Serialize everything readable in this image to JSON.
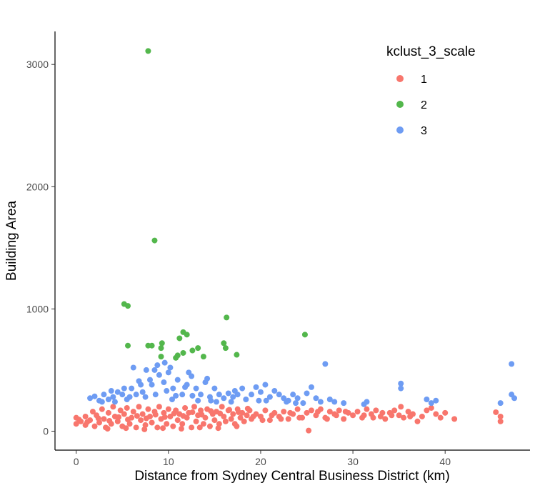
{
  "chart_data": {
    "type": "scatter",
    "title": "",
    "xlabel": "Distance from Sydney Central Business District (km)",
    "ylabel": "Building Area",
    "xlim": [
      -2.3,
      49.2
    ],
    "ylim": [
      -155,
      3270
    ],
    "x_ticks": [
      0,
      10,
      20,
      30,
      40
    ],
    "x_tick_labels": [
      "0",
      "10",
      "20",
      "30",
      "40"
    ],
    "y_ticks": [
      0,
      1000,
      2000,
      3000
    ],
    "y_tick_labels": [
      "0",
      "1000",
      "2000",
      "3000"
    ],
    "grid": false,
    "legend": {
      "title": "kclust_3_scale",
      "position": "top-right"
    },
    "series": [
      {
        "name": "1",
        "color": "#F8766D",
        "points": [
          [
            0,
            60
          ],
          [
            0,
            110
          ],
          [
            0.5,
            80
          ],
          [
            1,
            50
          ],
          [
            1,
            120
          ],
          [
            1.5,
            90
          ],
          [
            1.8,
            160
          ],
          [
            2,
            40
          ],
          [
            2.2,
            130
          ],
          [
            2.5,
            70
          ],
          [
            2.8,
            180
          ],
          [
            3,
            100
          ],
          [
            3.2,
            30
          ],
          [
            3.5,
            150
          ],
          [
            3.8,
            60
          ],
          [
            4,
            200
          ],
          [
            4.2,
            120
          ],
          [
            4.5,
            80
          ],
          [
            4.8,
            170
          ],
          [
            5,
            40
          ],
          [
            5.2,
            140
          ],
          [
            5.5,
            190
          ],
          [
            5.8,
            60
          ],
          [
            6,
            110
          ],
          [
            6.2,
            160
          ],
          [
            6.5,
            30
          ],
          [
            6.8,
            200
          ],
          [
            7,
            90
          ],
          [
            7.2,
            140
          ],
          [
            7.5,
            50
          ],
          [
            7.8,
            180
          ],
          [
            8,
            120
          ],
          [
            8.2,
            70
          ],
          [
            8.5,
            160
          ],
          [
            8.8,
            30
          ],
          [
            9,
            200
          ],
          [
            9.2,
            100
          ],
          [
            9.5,
            150
          ],
          [
            9.8,
            60
          ],
          [
            10,
            180
          ],
          [
            10.2,
            120
          ],
          [
            10.5,
            40
          ],
          [
            10.8,
            170
          ],
          [
            11,
            90
          ],
          [
            11.2,
            140
          ],
          [
            11.5,
            60
          ],
          [
            11.8,
            190
          ],
          [
            12,
            110
          ],
          [
            12.2,
            150
          ],
          [
            12.5,
            30
          ],
          [
            12.8,
            200
          ],
          [
            13,
            80
          ],
          [
            13.2,
            130
          ],
          [
            13.5,
            170
          ],
          [
            13.8,
            60
          ],
          [
            14,
            110
          ],
          [
            14.2,
            180
          ],
          [
            14.5,
            40
          ],
          [
            14.8,
            140
          ],
          [
            15,
            90
          ],
          [
            15.2,
            160
          ],
          [
            15.5,
            60
          ],
          [
            15.8,
            200
          ],
          [
            16,
            120
          ],
          [
            16.2,
            80
          ],
          [
            16.5,
            170
          ],
          [
            16.8,
            100
          ],
          [
            17,
            140
          ],
          [
            17.2,
            60
          ],
          [
            17.5,
            180
          ],
          [
            17.8,
            110
          ],
          [
            18,
            150
          ],
          [
            18.2,
            80
          ],
          [
            18.5,
            130
          ],
          [
            18.8,
            170
          ],
          [
            19,
            100
          ],
          [
            19.5,
            140
          ],
          [
            20,
            120
          ],
          [
            20.5,
            170
          ],
          [
            21,
            90
          ],
          [
            21.5,
            150
          ],
          [
            22,
            120
          ],
          [
            22.5,
            160
          ],
          [
            23,
            100
          ],
          [
            23.5,
            140
          ],
          [
            24,
            180
          ],
          [
            24.5,
            110
          ],
          [
            25,
            150
          ],
          [
            25.2,
            5
          ],
          [
            25.5,
            170
          ],
          [
            26,
            130
          ],
          [
            26.5,
            180
          ],
          [
            27,
            110
          ],
          [
            27.5,
            160
          ],
          [
            28,
            140
          ],
          [
            28.5,
            170
          ],
          [
            29,
            100
          ],
          [
            29.5,
            150
          ],
          [
            30,
            130
          ],
          [
            30.5,
            160
          ],
          [
            31,
            110
          ],
          [
            31.5,
            180
          ],
          [
            32,
            140
          ],
          [
            32.5,
            170
          ],
          [
            33,
            120
          ],
          [
            33.5,
            100
          ],
          [
            34,
            150
          ],
          [
            34.5,
            170
          ],
          [
            35,
            130
          ],
          [
            35.2,
            200
          ],
          [
            35.5,
            110
          ],
          [
            36,
            160
          ],
          [
            36.5,
            140
          ],
          [
            37,
            80
          ],
          [
            37.5,
            120
          ],
          [
            38,
            170
          ],
          [
            38.5,
            190
          ],
          [
            39,
            140
          ],
          [
            40,
            150
          ],
          [
            41,
            100
          ],
          [
            45.5,
            155
          ],
          [
            46,
            120
          ],
          [
            46,
            80
          ],
          [
            0.3,
            95
          ],
          [
            1.2,
            75
          ],
          [
            2.4,
            105
          ],
          [
            3.6,
            85
          ],
          [
            4.6,
            115
          ],
          [
            5.6,
            95
          ],
          [
            6.6,
            125
          ],
          [
            7.6,
            105
          ],
          [
            8.6,
            135
          ],
          [
            9.6,
            115
          ],
          [
            10.6,
            145
          ],
          [
            11.6,
            125
          ],
          [
            12.6,
            155
          ],
          [
            13.6,
            135
          ],
          [
            14.6,
            165
          ],
          [
            15.6,
            145
          ],
          [
            16.6,
            175
          ],
          [
            17.6,
            155
          ],
          [
            18.6,
            185
          ],
          [
            19.2,
            120
          ],
          [
            20.2,
            90
          ],
          [
            21.2,
            130
          ],
          [
            22.2,
            100
          ],
          [
            23.2,
            150
          ],
          [
            24.2,
            110
          ],
          [
            26.2,
            160
          ],
          [
            27.2,
            100
          ],
          [
            28.2,
            130
          ],
          [
            29.2,
            160
          ],
          [
            31.2,
            130
          ],
          [
            32.2,
            110
          ],
          [
            33.2,
            150
          ],
          [
            34.2,
            130
          ],
          [
            36.2,
            120
          ],
          [
            39.5,
            110
          ],
          [
            3.4,
            20
          ],
          [
            5.4,
            25
          ],
          [
            7.4,
            15
          ],
          [
            9.4,
            25
          ],
          [
            11.4,
            20
          ],
          [
            13.4,
            30
          ],
          [
            15.4,
            25
          ],
          [
            17.4,
            40
          ]
        ]
      },
      {
        "name": "2",
        "color": "#53B74C",
        "points": [
          [
            7.8,
            3110
          ],
          [
            8.5,
            1560
          ],
          [
            5.2,
            1040
          ],
          [
            5.6,
            1025
          ],
          [
            16.3,
            930
          ],
          [
            11.6,
            810
          ],
          [
            12.0,
            790
          ],
          [
            24.8,
            790
          ],
          [
            11.2,
            760
          ],
          [
            13.2,
            680
          ],
          [
            16.0,
            720
          ],
          [
            16.2,
            680
          ],
          [
            5.6,
            700
          ],
          [
            7.8,
            700
          ],
          [
            8.2,
            700
          ],
          [
            9.3,
            720
          ],
          [
            9.2,
            680
          ],
          [
            11.0,
            620
          ],
          [
            11.6,
            640
          ],
          [
            12.6,
            660
          ],
          [
            13.8,
            610
          ],
          [
            17.4,
            625
          ],
          [
            9.2,
            610
          ],
          [
            10.8,
            600
          ]
        ]
      },
      {
        "name": "3",
        "color": "#6E9CF3",
        "points": [
          [
            1.5,
            270
          ],
          [
            2,
            285
          ],
          [
            2.5,
            250
          ],
          [
            3,
            300
          ],
          [
            3.5,
            260
          ],
          [
            4,
            280
          ],
          [
            4.5,
            320
          ],
          [
            5,
            300
          ],
          [
            5.5,
            260
          ],
          [
            6,
            350
          ],
          [
            6.5,
            300
          ],
          [
            7,
            380
          ],
          [
            7.5,
            280
          ],
          [
            8,
            420
          ],
          [
            8.5,
            500
          ],
          [
            8.8,
            540
          ],
          [
            9,
            460
          ],
          [
            9.5,
            400
          ],
          [
            10,
            480
          ],
          [
            10.5,
            350
          ],
          [
            11,
            420
          ],
          [
            11.5,
            300
          ],
          [
            12,
            380
          ],
          [
            12.5,
            450
          ],
          [
            13,
            350
          ],
          [
            13.5,
            300
          ],
          [
            14,
            400
          ],
          [
            14.5,
            280
          ],
          [
            15,
            350
          ],
          [
            15.5,
            300
          ],
          [
            16,
            270
          ],
          [
            16.5,
            310
          ],
          [
            17,
            280
          ],
          [
            17.5,
            300
          ],
          [
            18,
            350
          ],
          [
            19,
            300
          ],
          [
            19.5,
            360
          ],
          [
            20,
            320
          ],
          [
            20.5,
            380
          ],
          [
            21,
            280
          ],
          [
            21.5,
            330
          ],
          [
            22,
            300
          ],
          [
            22.5,
            270
          ],
          [
            23,
            250
          ],
          [
            23.5,
            300
          ],
          [
            24,
            270
          ],
          [
            25,
            310
          ],
          [
            25.5,
            360
          ],
          [
            26,
            270
          ],
          [
            27,
            550
          ],
          [
            27.5,
            260
          ],
          [
            28,
            240
          ],
          [
            29,
            230
          ],
          [
            31.5,
            240
          ],
          [
            35.2,
            390
          ],
          [
            35.2,
            350
          ],
          [
            38,
            260
          ],
          [
            39,
            250
          ],
          [
            46,
            230
          ],
          [
            47.2,
            550
          ],
          [
            47.2,
            300
          ],
          [
            47.5,
            270
          ],
          [
            6.2,
            520
          ],
          [
            7.6,
            500
          ],
          [
            9.6,
            560
          ],
          [
            10.2,
            520
          ],
          [
            12.2,
            480
          ],
          [
            14.2,
            430
          ],
          [
            4.2,
            240
          ],
          [
            5.2,
            350
          ],
          [
            6.8,
            410
          ],
          [
            8.2,
            380
          ],
          [
            9.8,
            330
          ],
          [
            10.8,
            290
          ],
          [
            11.8,
            360
          ],
          [
            13.2,
            250
          ],
          [
            15.2,
            240
          ],
          [
            17.2,
            330
          ],
          [
            18.4,
            260
          ],
          [
            19.8,
            250
          ],
          [
            22.8,
            240
          ],
          [
            24.6,
            230
          ],
          [
            2.8,
            240
          ],
          [
            3.8,
            330
          ],
          [
            5.8,
            280
          ],
          [
            7.2,
            320
          ],
          [
            8.6,
            300
          ],
          [
            10.4,
            260
          ],
          [
            12.6,
            290
          ],
          [
            14.6,
            250
          ],
          [
            16.8,
            240
          ],
          [
            20.6,
            250
          ],
          [
            23.8,
            230
          ],
          [
            26.5,
            240
          ],
          [
            31.2,
            220
          ],
          [
            38.5,
            230
          ]
        ]
      }
    ]
  }
}
